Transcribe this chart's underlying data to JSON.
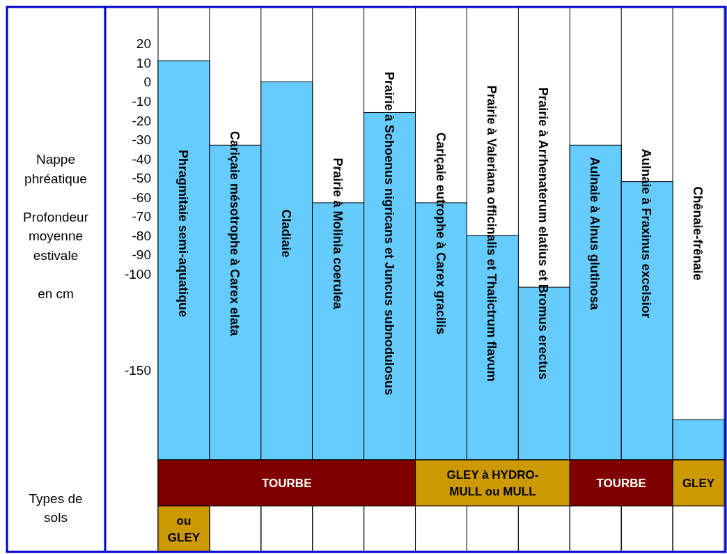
{
  "chart_data": [
    {
      "type": "bar",
      "ylabel": "Nappe\nphréatique\n\nProfondeur\nmoyenne\nestivale\n\nen cm",
      "categories": [
        "Phragmitaie semi-aquatique",
        "Cariçaie mésotrophe à Carex elata",
        "Cladiaie",
        "Prairie à Molinia coerulea",
        "Prairie à Schoenus nigricans et Juncus subnodulosus",
        "Cariçaie eutrophe à Carex gracilis",
        "Prairie à Valeriana officinalis et Thalictrum flavum",
        "Prairie à Arrhenaterum elatius et Bromus erectus",
        "Aulnaie à Alnus glutinosa",
        "Aulnaie à Fraxinus excelsior",
        "Chênaie-frênaie"
      ],
      "values": [
        208,
        164,
        197,
        134,
        181,
        134,
        117,
        90,
        164,
        145,
        21
      ],
      "base": [
        -197,
        -197,
        -197,
        -197,
        -197,
        -197,
        -197,
        -197,
        -197,
        -197,
        -197
      ],
      "color": "#66ccff",
      "ylim": [
        -197,
        39
      ],
      "yticks": [
        20,
        10,
        0,
        -10,
        -20,
        -30,
        -40,
        -50,
        -60,
        -70,
        -80,
        -90,
        -100,
        -150
      ],
      "grid": "x"
    },
    {
      "type": "other",
      "title": "Types de sols",
      "annotations": [
        "TOURBE",
        "GLEY à HYDRO-MULL ou MULL",
        "TOURBE",
        "GLEY",
        "ou GLEY"
      ],
      "colors": [
        "#800000",
        "#cc9900",
        "#800000",
        "#cc9900",
        "#cc9900"
      ]
    }
  ]
}
